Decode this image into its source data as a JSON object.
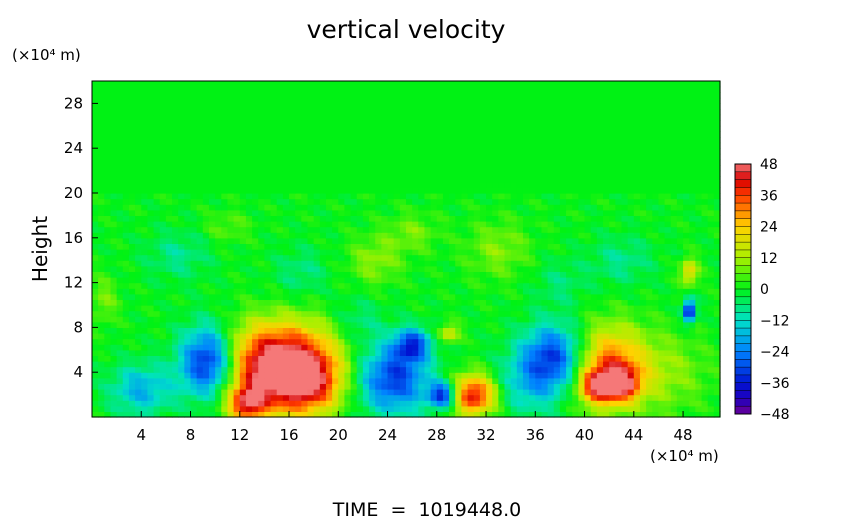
{
  "chart_data": {
    "type": "heatmap",
    "title": "vertical velocity",
    "ylabel": "Height",
    "xunit": "(×10⁴ m)",
    "yunit": "(×10⁴ m)",
    "footer": "TIME  =  1019448.0",
    "xlim": [
      0,
      51
    ],
    "ylim": [
      0,
      30
    ],
    "xticks": [
      4,
      8,
      12,
      16,
      20,
      24,
      28,
      32,
      36,
      40,
      44,
      48
    ],
    "yticks": [
      4,
      8,
      12,
      16,
      20,
      24,
      28
    ],
    "colorbar": {
      "ticks": [
        48,
        36,
        24,
        12,
        0,
        -12,
        -24,
        -36,
        -48
      ],
      "range": [
        -48,
        48
      ]
    },
    "features": [
      {
        "x": 9.5,
        "y": 5.0,
        "value": -40,
        "sx": 1.6,
        "sy": 2.2
      },
      {
        "x": 4.0,
        "y": 2.5,
        "value": -18,
        "sx": 1.8,
        "sy": 1.6
      },
      {
        "x": 14.5,
        "y": 3.5,
        "value": 45,
        "sx": 2.6,
        "sy": 2.4
      },
      {
        "x": 18.0,
        "y": 3.2,
        "value": 32,
        "sx": 1.8,
        "sy": 2.0
      },
      {
        "x": 15.5,
        "y": 6.5,
        "value": 22,
        "sx": 3.5,
        "sy": 2.0
      },
      {
        "x": 12.5,
        "y": 1.2,
        "value": 30,
        "sx": 1.0,
        "sy": 1.0
      },
      {
        "x": 24.5,
        "y": 3.5,
        "value": -32,
        "sx": 2.0,
        "sy": 2.2
      },
      {
        "x": 26.0,
        "y": 6.5,
        "value": -28,
        "sx": 1.0,
        "sy": 1.0
      },
      {
        "x": 28.5,
        "y": 2.0,
        "value": -36,
        "sx": 0.8,
        "sy": 0.8
      },
      {
        "x": 31.0,
        "y": 2.0,
        "value": 42,
        "sx": 1.3,
        "sy": 1.3
      },
      {
        "x": 37.5,
        "y": 5.5,
        "value": -30,
        "sx": 1.8,
        "sy": 2.0
      },
      {
        "x": 35.5,
        "y": 3.0,
        "value": -14,
        "sx": 2.0,
        "sy": 2.0
      },
      {
        "x": 42.0,
        "y": 4.5,
        "value": 34,
        "sx": 2.0,
        "sy": 2.5
      },
      {
        "x": 41.0,
        "y": 2.8,
        "value": 28,
        "sx": 1.0,
        "sy": 1.0
      },
      {
        "x": 43.0,
        "y": 3.0,
        "value": 30,
        "sx": 1.0,
        "sy": 1.0
      },
      {
        "x": 48.5,
        "y": 9.5,
        "value": -42,
        "sx": 0.35,
        "sy": 0.7
      },
      {
        "x": 48.5,
        "y": 13.0,
        "value": 22,
        "sx": 0.5,
        "sy": 0.8
      },
      {
        "x": 46.5,
        "y": 4.0,
        "value": 10,
        "sx": 2.5,
        "sy": 2.5
      },
      {
        "x": 29.0,
        "y": 7.5,
        "value": 18,
        "sx": 0.6,
        "sy": 0.6
      },
      {
        "x": 23.0,
        "y": 14.0,
        "value": 10,
        "sx": 1.5,
        "sy": 1.5
      },
      {
        "x": 7.0,
        "y": 14.5,
        "value": -8,
        "sx": 1.8,
        "sy": 1.5
      },
      {
        "x": 33.0,
        "y": 15.0,
        "value": 9,
        "sx": 1.8,
        "sy": 1.8
      },
      {
        "x": 17.0,
        "y": 13.0,
        "value": -7,
        "sx": 1.5,
        "sy": 1.5
      },
      {
        "x": 43.0,
        "y": 14.0,
        "value": -8,
        "sx": 1.8,
        "sy": 1.5
      },
      {
        "x": 26.0,
        "y": 16.5,
        "value": 8,
        "sx": 1.5,
        "sy": 1.2
      },
      {
        "x": 11.0,
        "y": 17.0,
        "value": 6,
        "sx": 1.3,
        "sy": 1.0
      },
      {
        "x": 38.0,
        "y": 12.0,
        "value": -6,
        "sx": 1.5,
        "sy": 1.5
      },
      {
        "x": 1.0,
        "y": 10.5,
        "value": 8,
        "sx": 0.8,
        "sy": 1.5
      },
      {
        "x": 21.5,
        "y": 8.5,
        "value": -8,
        "sx": 1.5,
        "sy": 1.5
      }
    ]
  }
}
